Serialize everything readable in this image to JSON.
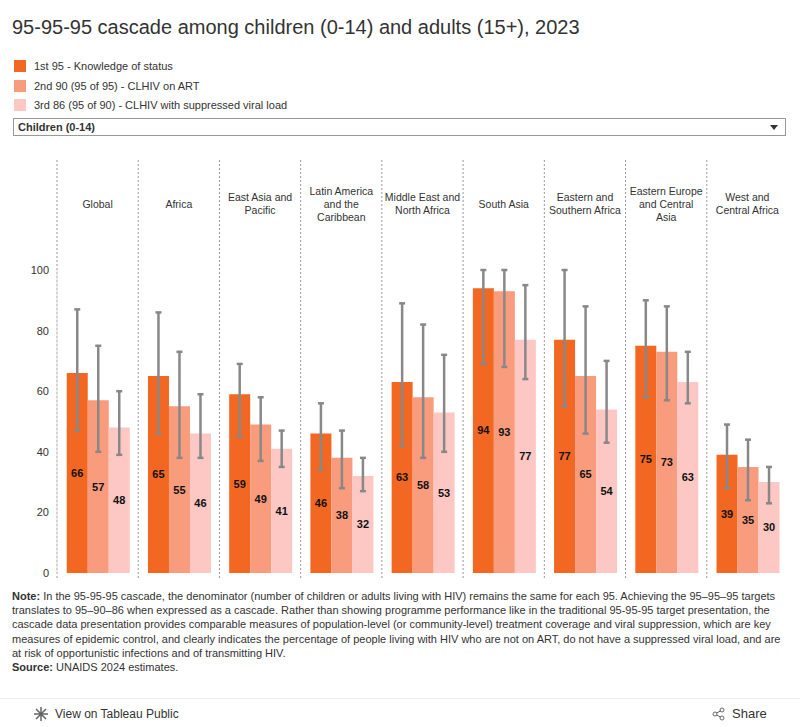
{
  "chart_data": {
    "type": "bar",
    "title": "95-95-95 cascade among children (0-14) and adults (15+), 2023",
    "filter": "Children (0-14)",
    "categories": [
      "Global",
      "Africa",
      "East Asia and Pacific",
      "Latin America and the Caribbean",
      "Middle East and North Africa",
      "South Asia",
      "Eastern and Southern Africa",
      "Eastern Europe and Central Asia",
      "West and Central Africa"
    ],
    "series": [
      {
        "name": "1st 95 - Knowledge of status",
        "color": "#f26722",
        "values": [
          66,
          65,
          59,
          46,
          63,
          94,
          77,
          75,
          39
        ],
        "errors": [
          [
            47,
            87
          ],
          [
            46,
            86
          ],
          [
            45,
            69
          ],
          [
            34,
            56
          ],
          [
            42,
            89
          ],
          [
            69,
            100
          ],
          [
            55,
            100
          ],
          [
            58,
            90
          ],
          [
            28,
            49
          ]
        ]
      },
      {
        "name": "2nd 90 (95 of 95) - CLHIV on ART",
        "color": "#f99b7d",
        "values": [
          57,
          55,
          49,
          38,
          58,
          93,
          65,
          73,
          35
        ],
        "errors": [
          [
            40,
            75
          ],
          [
            38,
            73
          ],
          [
            37,
            58
          ],
          [
            28,
            47
          ],
          [
            38,
            82
          ],
          [
            68,
            100
          ],
          [
            46,
            88
          ],
          [
            57,
            88
          ],
          [
            24,
            44
          ]
        ]
      },
      {
        "name": "3rd 86 (95 of 90) - CLHIV with suppressed viral load",
        "color": "#fdc8c4",
        "values": [
          48,
          46,
          41,
          32,
          53,
          77,
          54,
          63,
          30
        ],
        "errors": [
          [
            39,
            60
          ],
          [
            38,
            59
          ],
          [
            35,
            47
          ],
          [
            27,
            38
          ],
          [
            40,
            72
          ],
          [
            64,
            95
          ],
          [
            43,
            70
          ],
          [
            56,
            73
          ],
          [
            23,
            35
          ]
        ]
      }
    ],
    "ylim": [
      0,
      100
    ],
    "yticks": [
      0,
      20,
      40,
      60,
      80,
      100
    ],
    "grid": false,
    "data_labels": true,
    "note": {
      "label": "Note:",
      "text": "In the 95-95-95 cascade, the denominator (number of children or adults living with HIV) remains the same for each 95. Achieving the 95–95–95 targets translates to 95–90–86 when expressed as a cascade. Rather than showing programme performance like in the traditional 95-95-95 target presentation, the cascade data presentation provides comparable measures of population-level (or community-level) treatment coverage and viral suppression, which are key measures of epidemic control, and clearly indicates the percentage of people living with HIV who are not on ART, do not have a suppressed viral load, and are at risk of opportunistic infections and of transmitting HIV."
    },
    "source": {
      "label": "Source:",
      "text": "UNAIDS 2024 estimates."
    },
    "footer": {
      "link": "View on Tableau Public",
      "share": "Share"
    }
  }
}
